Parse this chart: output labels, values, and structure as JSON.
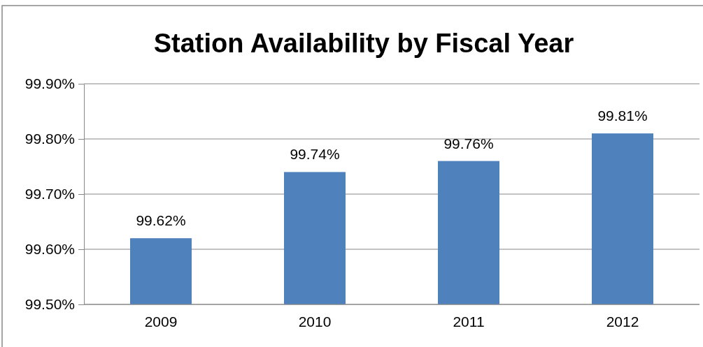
{
  "chart_data": {
    "type": "bar",
    "title": "Station Availability by Fiscal Year",
    "categories": [
      "2009",
      "2010",
      "2011",
      "2012"
    ],
    "values": [
      99.62,
      99.74,
      99.76,
      99.81
    ],
    "value_labels": [
      "99.62%",
      "99.74%",
      "99.76%",
      "99.81%"
    ],
    "color": "#4f81bd",
    "ylim": [
      99.5,
      99.9
    ],
    "yticks": [
      {
        "value": 99.5,
        "label": "99.50%"
      },
      {
        "value": 99.6,
        "label": "99.60%"
      },
      {
        "value": 99.7,
        "label": "99.70%"
      },
      {
        "value": 99.8,
        "label": "99.80%"
      },
      {
        "value": 99.9,
        "label": "99.90%"
      }
    ],
    "grid": "y"
  }
}
